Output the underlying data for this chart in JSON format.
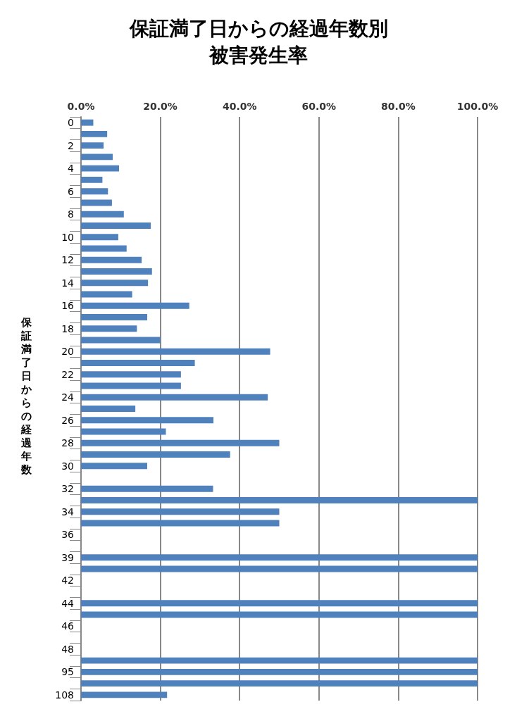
{
  "chart_data": {
    "type": "bar",
    "orientation": "horizontal",
    "title": "保証満了日からの経過年数別被害発生率",
    "ylabel": "保証満了日からの経過年数",
    "categories": [
      "0",
      null,
      "2",
      null,
      "4",
      null,
      "6",
      null,
      "8",
      null,
      "10",
      null,
      "12",
      null,
      "14",
      null,
      "16",
      null,
      "18",
      null,
      "20",
      null,
      "22",
      null,
      "24",
      null,
      "26",
      null,
      "28",
      null,
      "30",
      null,
      "32",
      null,
      "34",
      null,
      "36",
      null,
      "39",
      null,
      "42",
      null,
      "44",
      null,
      "46",
      null,
      "48",
      null,
      "95",
      null,
      "108"
    ],
    "values": [
      3.1,
      6.6,
      5.7,
      8.0,
      9.6,
      5.4,
      6.8,
      7.8,
      10.8,
      17.6,
      9.4,
      11.5,
      15.3,
      17.9,
      16.9,
      12.9,
      27.3,
      16.7,
      14.1,
      20.0,
      47.7,
      28.7,
      25.2,
      25.2,
      47.1,
      13.7,
      33.4,
      21.4,
      50,
      37.6,
      16.7,
      0,
      33.3,
      100,
      50,
      50,
      0,
      0,
      100,
      100,
      0,
      0,
      100,
      100,
      0,
      0,
      0,
      100,
      100,
      100,
      21.7
    ],
    "color": "#4f81bd",
    "xlim": [
      0,
      100
    ],
    "xticks": [
      {
        "value": 0,
        "label": "0.0%"
      },
      {
        "value": 20,
        "label": "20.0%"
      },
      {
        "value": 40,
        "label": "40.0%"
      },
      {
        "value": 60,
        "label": "60.0%"
      },
      {
        "value": 80,
        "label": "80.0%"
      },
      {
        "value": 100,
        "label": "100.0%"
      }
    ],
    "grid": "x"
  }
}
